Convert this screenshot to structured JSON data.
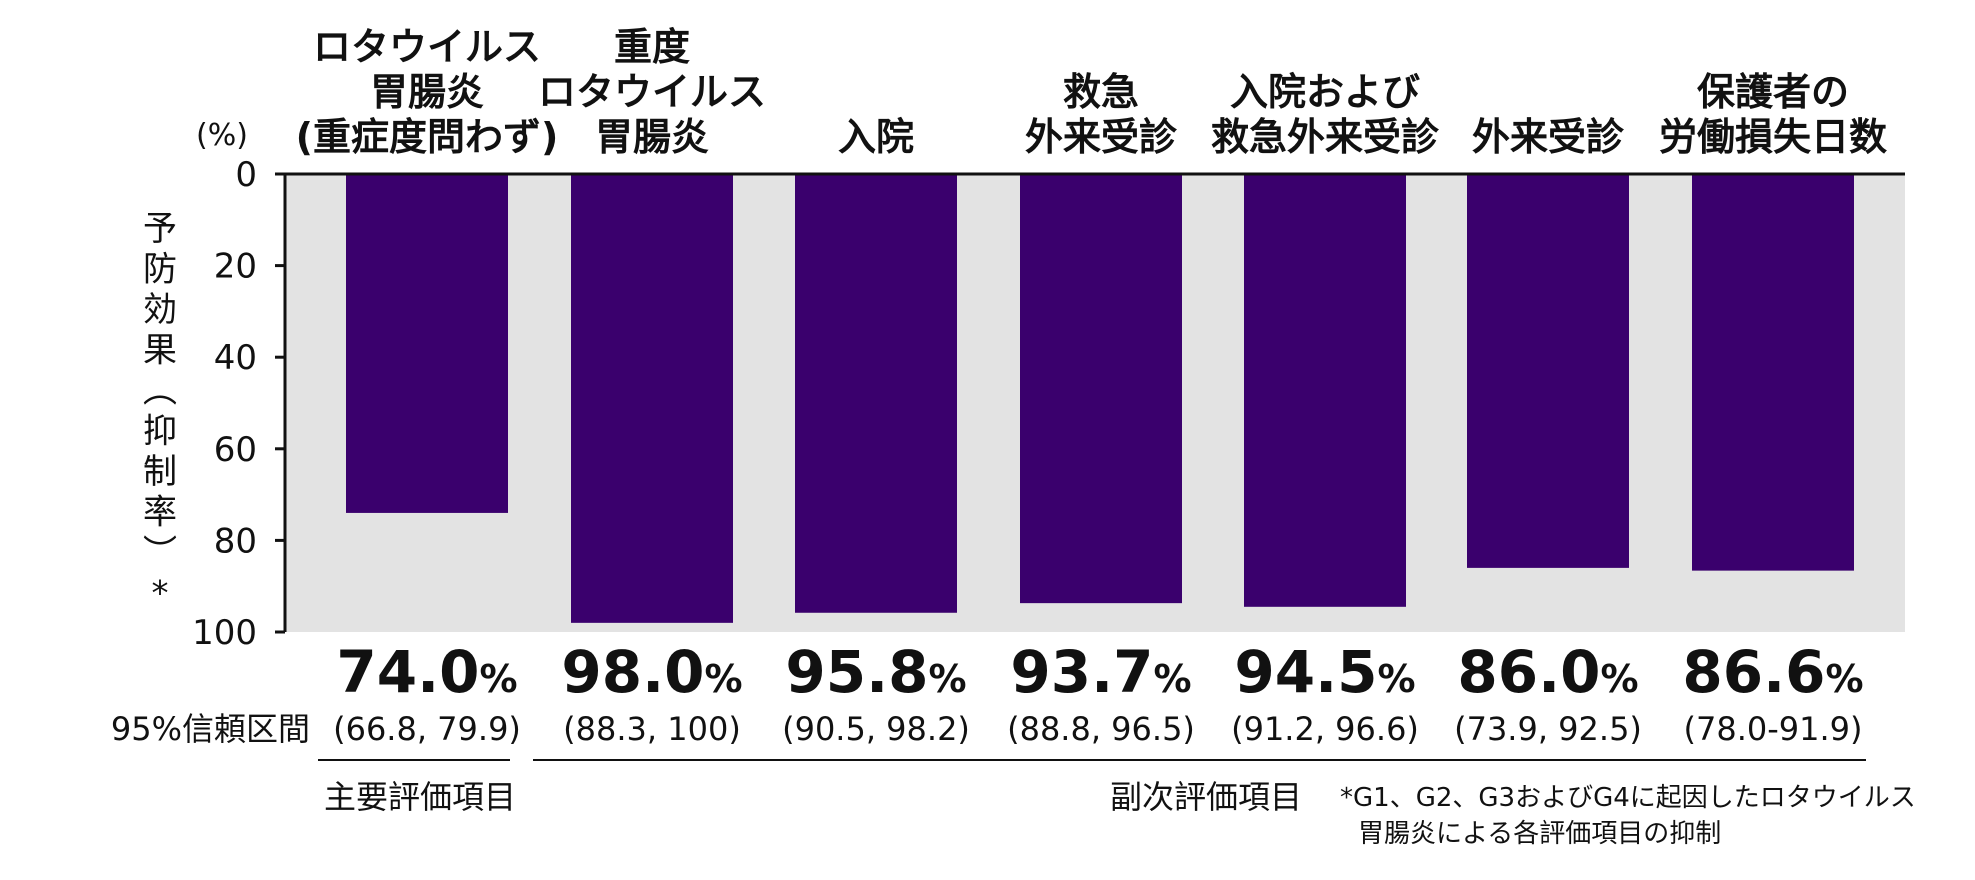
{
  "chart_data": {
    "type": "bar",
    "orientation": "vertical-downward",
    "categories": [
      [
        "ロタウイルス",
        "胃腸炎",
        "(重症度問わず)"
      ],
      [
        "重度",
        "ロタウイルス",
        "胃腸炎"
      ],
      [
        "入院"
      ],
      [
        "救急",
        "外来受診"
      ],
      [
        "入院および",
        "救急外来受診"
      ],
      [
        "外来受診"
      ],
      [
        "保護者の",
        "労働損失日数"
      ]
    ],
    "values": [
      74.0,
      98.0,
      95.8,
      93.7,
      94.5,
      86.0,
      86.6
    ],
    "value_labels": [
      "74.0",
      "98.0",
      "95.8",
      "93.7",
      "94.5",
      "86.0",
      "86.6"
    ],
    "value_unit": "%",
    "ci_label": "95%信頼区間",
    "ci": [
      "(66.8, 79.9)",
      "(88.3, 100)",
      "(90.5, 98.2)",
      "(88.8, 96.5)",
      "(91.2, 96.6)",
      "(73.9, 92.5)",
      "(78.0-91.9)"
    ],
    "ylabel": "予防効果(抑制率)*",
    "yunit": "(%)",
    "ylim": [
      0,
      100
    ],
    "yticks": [
      "0",
      "20",
      "40",
      "60",
      "80",
      "100"
    ],
    "grid": false,
    "primary_endpoint_label": "主要評価項目",
    "secondary_endpoint_label": "副次評価項目",
    "footnote": [
      "*G1、G2、G3およびG4に起因したロタウイルス",
      "胃腸炎による各評価項目の抑制"
    ],
    "colors": {
      "bar": "#3a006d",
      "plot_background": "#e3e3e3",
      "axis": "#111111"
    }
  }
}
